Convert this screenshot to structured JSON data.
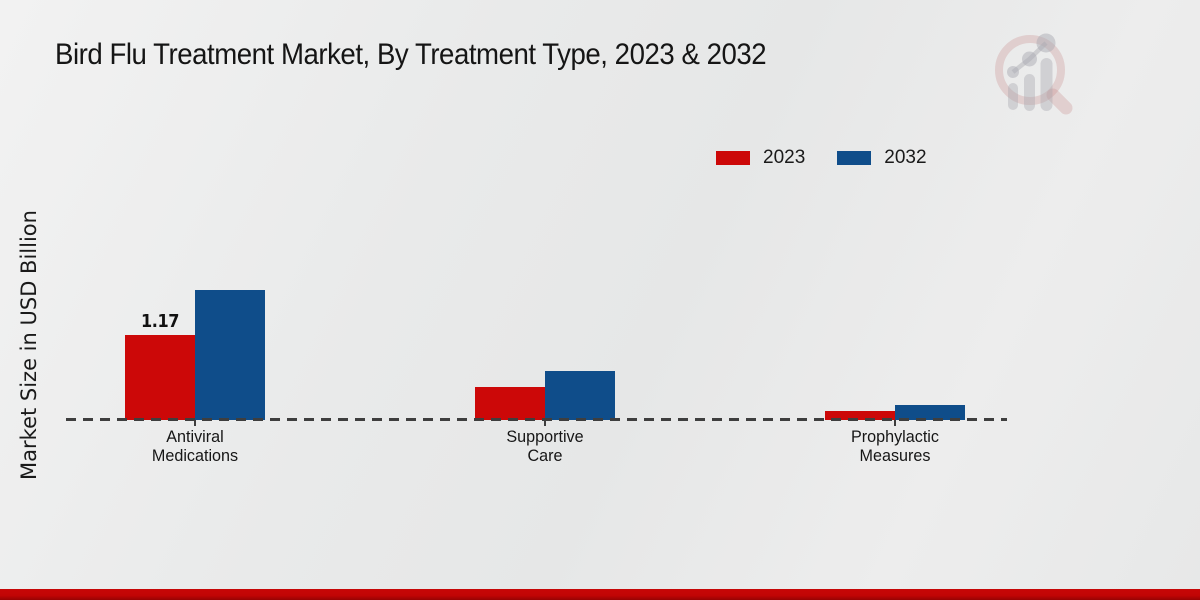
{
  "header": {
    "title": "Bird Flu Treatment Market, By Treatment Type, 2023 & 2032"
  },
  "axes": {
    "y_label": "Market Size in USD Billion"
  },
  "legend": {
    "items": [
      {
        "label": "2023",
        "color": "#cc0808"
      },
      {
        "label": "2032",
        "color": "#0f4d8a"
      }
    ]
  },
  "chart_data": {
    "type": "bar",
    "title": "Bird Flu Treatment Market, By Treatment Type, 2023 & 2032",
    "xlabel": "",
    "ylabel": "Market Size in USD Billion",
    "unit": "USD Billion",
    "categories": [
      "Antiviral Medications",
      "Supportive Care",
      "Prophylactic Measures"
    ],
    "category_label_lines": [
      [
        "Antiviral",
        "Medications"
      ],
      [
        "Supportive",
        "Care"
      ],
      [
        "Prophylactic",
        "Measures"
      ]
    ],
    "series": [
      {
        "name": "2023",
        "color": "#cc0808",
        "values": [
          1.17,
          0.46,
          0.13
        ]
      },
      {
        "name": "2032",
        "color": "#0f4d8a",
        "values": [
          1.79,
          0.67,
          0.2
        ]
      }
    ],
    "data_labels": [
      {
        "series_index": 0,
        "category_index": 0,
        "text": "1.17"
      }
    ],
    "baseline_value": 0,
    "ylim": [
      0,
      2.2
    ],
    "grid": false,
    "baseline_style": "dashed",
    "legend_position": "top-right"
  },
  "watermark": {
    "name": "magnifier-bar-chart-logo"
  },
  "footer": {
    "accent_color": "#c10505"
  }
}
